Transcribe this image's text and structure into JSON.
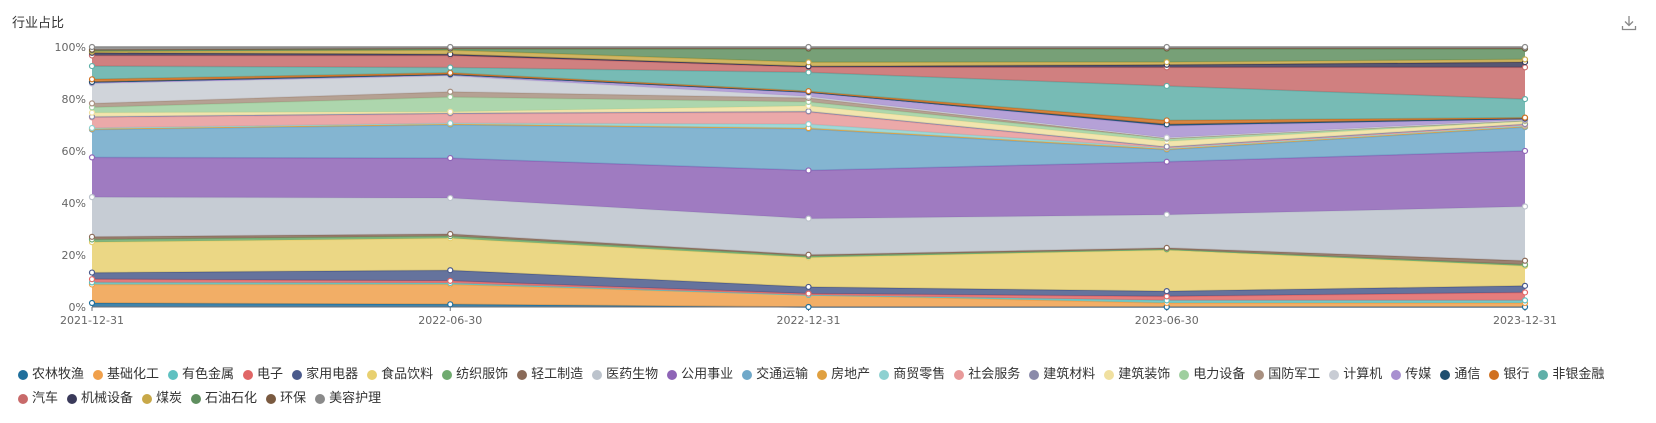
{
  "header": {
    "title": "行业占比"
  },
  "toolbar": {
    "download_icon": "download-icon"
  },
  "chart_data": {
    "type": "area",
    "stacked": true,
    "percent": true,
    "x": [
      "2021-12-31",
      "2022-06-30",
      "2022-12-31",
      "2023-06-30",
      "2023-12-31"
    ],
    "y_ticks": [
      "0%",
      "20%",
      "40%",
      "60%",
      "80%",
      "100%"
    ],
    "ylim": [
      0,
      100
    ],
    "grid": false,
    "legend_position": "bottom",
    "series": [
      {
        "name": "农林牧渔",
        "color": "#1f6f9c",
        "values": [
          1.5,
          1.0,
          0,
          0,
          0
        ]
      },
      {
        "name": "基础化工",
        "color": "#f0a04b",
        "values": [
          7.0,
          7.5,
          4.5,
          1.5,
          1.5
        ]
      },
      {
        "name": "有色金属",
        "color": "#5fc1c1",
        "values": [
          0.8,
          0.5,
          0,
          1.0,
          1.0
        ]
      },
      {
        "name": "电子",
        "color": "#e06666",
        "values": [
          1.2,
          0.8,
          0.5,
          1.5,
          3.0
        ]
      },
      {
        "name": "家用电器",
        "color": "#4a5a8c",
        "values": [
          2.5,
          4.0,
          2.5,
          2.0,
          2.5
        ]
      },
      {
        "name": "食品饮料",
        "color": "#e8d070",
        "values": [
          11.5,
          12.0,
          11.0,
          15.5,
          7.5
        ]
      },
      {
        "name": "纺织服饰",
        "color": "#6faa6f",
        "values": [
          1.0,
          0.8,
          0.5,
          0.3,
          0.5
        ]
      },
      {
        "name": "轻工制造",
        "color": "#8a6a58",
        "values": [
          1.0,
          0.8,
          0.5,
          0.5,
          1.5
        ]
      },
      {
        "name": "医药生物",
        "color": "#bcc3cc",
        "values": [
          15.0,
          13.5,
          13.5,
          12.5,
          20.5
        ]
      },
      {
        "name": "公用事业",
        "color": "#8e64b6",
        "values": [
          15.0,
          15.0,
          18.0,
          20.0,
          21.0
        ]
      },
      {
        "name": "交通运输",
        "color": "#6fa8c9",
        "values": [
          10.5,
          12.5,
          15.5,
          4.5,
          9.0
        ]
      },
      {
        "name": "房地产",
        "color": "#e0a040",
        "values": [
          0.3,
          0.3,
          0.3,
          0.3,
          0.3
        ]
      },
      {
        "name": "商贸零售",
        "color": "#8ed1d1",
        "values": [
          0.3,
          0.3,
          1.5,
          0.3,
          0.3
        ]
      },
      {
        "name": "社会服务",
        "color": "#e89a9a",
        "values": [
          4.0,
          3.5,
          4.5,
          0.3,
          0.3
        ]
      },
      {
        "name": "建筑材料",
        "color": "#8a8aaa",
        "values": [
          0.3,
          0.3,
          0.3,
          0.3,
          0.3
        ]
      },
      {
        "name": "建筑装饰",
        "color": "#f0e0a0",
        "values": [
          1.5,
          0.5,
          2.0,
          2.0,
          1.0
        ]
      },
      {
        "name": "电力设备",
        "color": "#9fcf9f",
        "values": [
          2.0,
          5.5,
          1.5,
          1.0,
          0.2
        ]
      },
      {
        "name": "国防军工",
        "color": "#a89080",
        "values": [
          1.5,
          2.0,
          1.5,
          0.2,
          0.2
        ]
      },
      {
        "name": "计算机",
        "color": "#c8ccd4",
        "values": [
          7.5,
          6.0,
          0.5,
          0.2,
          0.2
        ]
      },
      {
        "name": "传媒",
        "color": "#a890d0",
        "values": [
          0.3,
          0.3,
          1.5,
          4.5,
          0.2
        ]
      },
      {
        "name": "通信",
        "color": "#1f4f6f",
        "values": [
          0.3,
          0.3,
          0.2,
          0.5,
          0.3
        ]
      },
      {
        "name": "银行",
        "color": "#d07020",
        "values": [
          1.0,
          0.5,
          0.3,
          1.5,
          0.3
        ]
      },
      {
        "name": "非银金融",
        "color": "#5fafa8",
        "values": [
          5.0,
          2.0,
          7.0,
          13.0,
          7.0
        ]
      },
      {
        "name": "汽车",
        "color": "#c86a6a",
        "values": [
          4.0,
          4.5,
          2.0,
          7.0,
          12.0
        ]
      },
      {
        "name": "机械设备",
        "color": "#3a3a5a",
        "values": [
          1.0,
          0.5,
          0.3,
          1.0,
          2.0
        ]
      },
      {
        "name": "煤炭",
        "color": "#c8a848",
        "values": [
          0.5,
          1.5,
          1.5,
          1.0,
          1.0
        ]
      },
      {
        "name": "石油石化",
        "color": "#5f8f5f",
        "values": [
          0.5,
          0.5,
          5.0,
          5.0,
          4.0
        ]
      },
      {
        "name": "环保",
        "color": "#7a5a40",
        "values": [
          0.2,
          0.2,
          0.2,
          0.2,
          0.2
        ]
      },
      {
        "name": "美容护理",
        "color": "#8a8a8a",
        "values": [
          1.0,
          0.5,
          0.5,
          0.5,
          0.5
        ]
      }
    ]
  }
}
